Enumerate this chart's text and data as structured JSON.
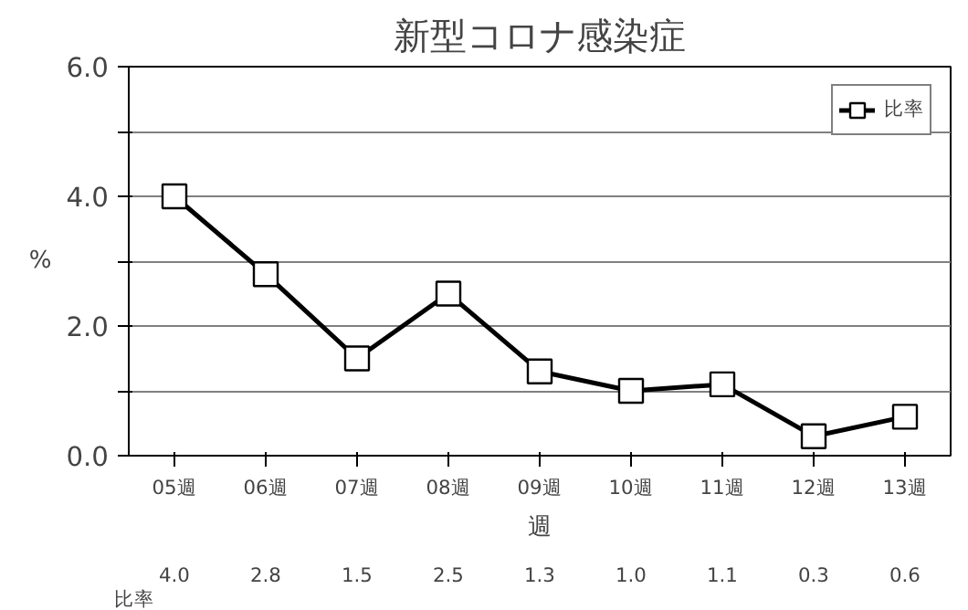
{
  "chart_data": {
    "type": "line",
    "title": "新型コロナ感染症",
    "ylabel": "%",
    "xlabel": "週",
    "categories": [
      "05週",
      "06週",
      "07週",
      "08週",
      "09週",
      "10週",
      "11週",
      "12週",
      "13週"
    ],
    "series": [
      {
        "name": "比率",
        "color": "#000000",
        "values": [
          4.0,
          2.8,
          1.5,
          2.5,
          1.3,
          1.0,
          1.1,
          0.3,
          0.6
        ],
        "value_labels": [
          "4.0",
          "2.8",
          "1.5",
          "2.5",
          "1.3",
          "1.0",
          "1.1",
          "0.3",
          "0.6"
        ]
      }
    ],
    "ylim": [
      0,
      6
    ],
    "yticks": [
      {
        "value": 0,
        "label": "0.0"
      },
      {
        "value": 1,
        "label": null
      },
      {
        "value": 2,
        "label": "2.0"
      },
      {
        "value": 3,
        "label": null
      },
      {
        "value": 4,
        "label": "4.0"
      },
      {
        "value": 5,
        "label": null
      },
      {
        "value": 6,
        "label": "6.0"
      }
    ],
    "grid": "y",
    "legend": "top right",
    "marker": "square",
    "line_style": "solid"
  }
}
